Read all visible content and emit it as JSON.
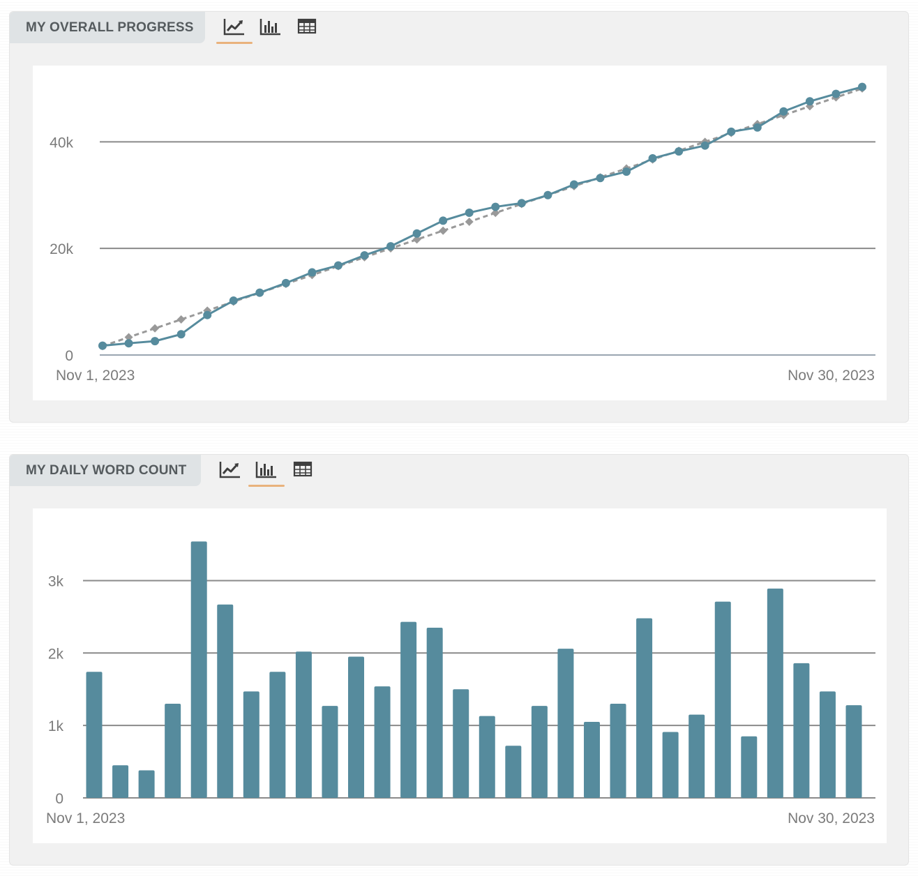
{
  "colors": {
    "series": "#568b9d",
    "target": "#999999",
    "grid": "#8a8a8a",
    "active_tab": "#e9b27c",
    "header_bg": "#dfe3e5"
  },
  "panels": [
    {
      "title": "MY OVERALL PROGRESS",
      "toggles": [
        {
          "icon": "line-chart-icon",
          "active": true
        },
        {
          "icon": "bar-chart-icon",
          "active": false
        },
        {
          "icon": "table-icon",
          "active": false
        }
      ]
    },
    {
      "title": "MY DAILY WORD COUNT",
      "toggles": [
        {
          "icon": "line-chart-icon",
          "active": false
        },
        {
          "icon": "bar-chart-icon",
          "active": true
        },
        {
          "icon": "table-icon",
          "active": false
        }
      ]
    }
  ],
  "chart_data": [
    {
      "type": "line",
      "x_range": [
        "Nov 1, 2023",
        "Nov 30, 2023"
      ],
      "ylim": [
        0,
        53000
      ],
      "y_ticks": [
        {
          "value": 0,
          "label": "0"
        },
        {
          "value": 20000,
          "label": "20k"
        },
        {
          "value": 40000,
          "label": "40k"
        }
      ],
      "x_tick_labels": [
        "Nov 1, 2023",
        "Nov 30, 2023"
      ],
      "grid": true,
      "series": [
        {
          "style": "solid",
          "marker": "circle",
          "values": [
            1750,
            2200,
            2600,
            3900,
            7500,
            10200,
            11700,
            13500,
            15500,
            16800,
            18700,
            20400,
            22800,
            25200,
            26700,
            27800,
            28500,
            30000,
            32000,
            33200,
            34400,
            36900,
            38200,
            39300,
            41900,
            42700,
            45700,
            47600,
            49000,
            50300
          ]
        },
        {
          "style": "dashed",
          "marker": "diamond",
          "values": [
            1667,
            3333,
            5000,
            6667,
            8333,
            10000,
            11667,
            13333,
            15000,
            16667,
            18333,
            20000,
            21667,
            23333,
            25000,
            26667,
            28333,
            30000,
            31667,
            33333,
            35000,
            36667,
            38333,
            40000,
            41667,
            43333,
            45000,
            46667,
            48333,
            50000
          ]
        }
      ]
    },
    {
      "type": "bar",
      "x_range": [
        "Nov 1, 2023",
        "Nov 30, 2023"
      ],
      "ylim": [
        0,
        3900
      ],
      "y_ticks": [
        {
          "value": 0,
          "label": "0"
        },
        {
          "value": 1000,
          "label": "1k"
        },
        {
          "value": 2000,
          "label": "2k"
        },
        {
          "value": 3000,
          "label": "3k"
        }
      ],
      "x_tick_labels": [
        "Nov 1, 2023",
        "Nov 30, 2023"
      ],
      "grid": true,
      "values": [
        1740,
        450,
        380,
        1300,
        3540,
        2670,
        1470,
        1740,
        2020,
        1270,
        1950,
        1540,
        2430,
        2350,
        1500,
        1130,
        720,
        1270,
        2060,
        1050,
        1300,
        2480,
        910,
        1150,
        2710,
        850,
        2890,
        1860,
        1470,
        1280
      ]
    }
  ]
}
